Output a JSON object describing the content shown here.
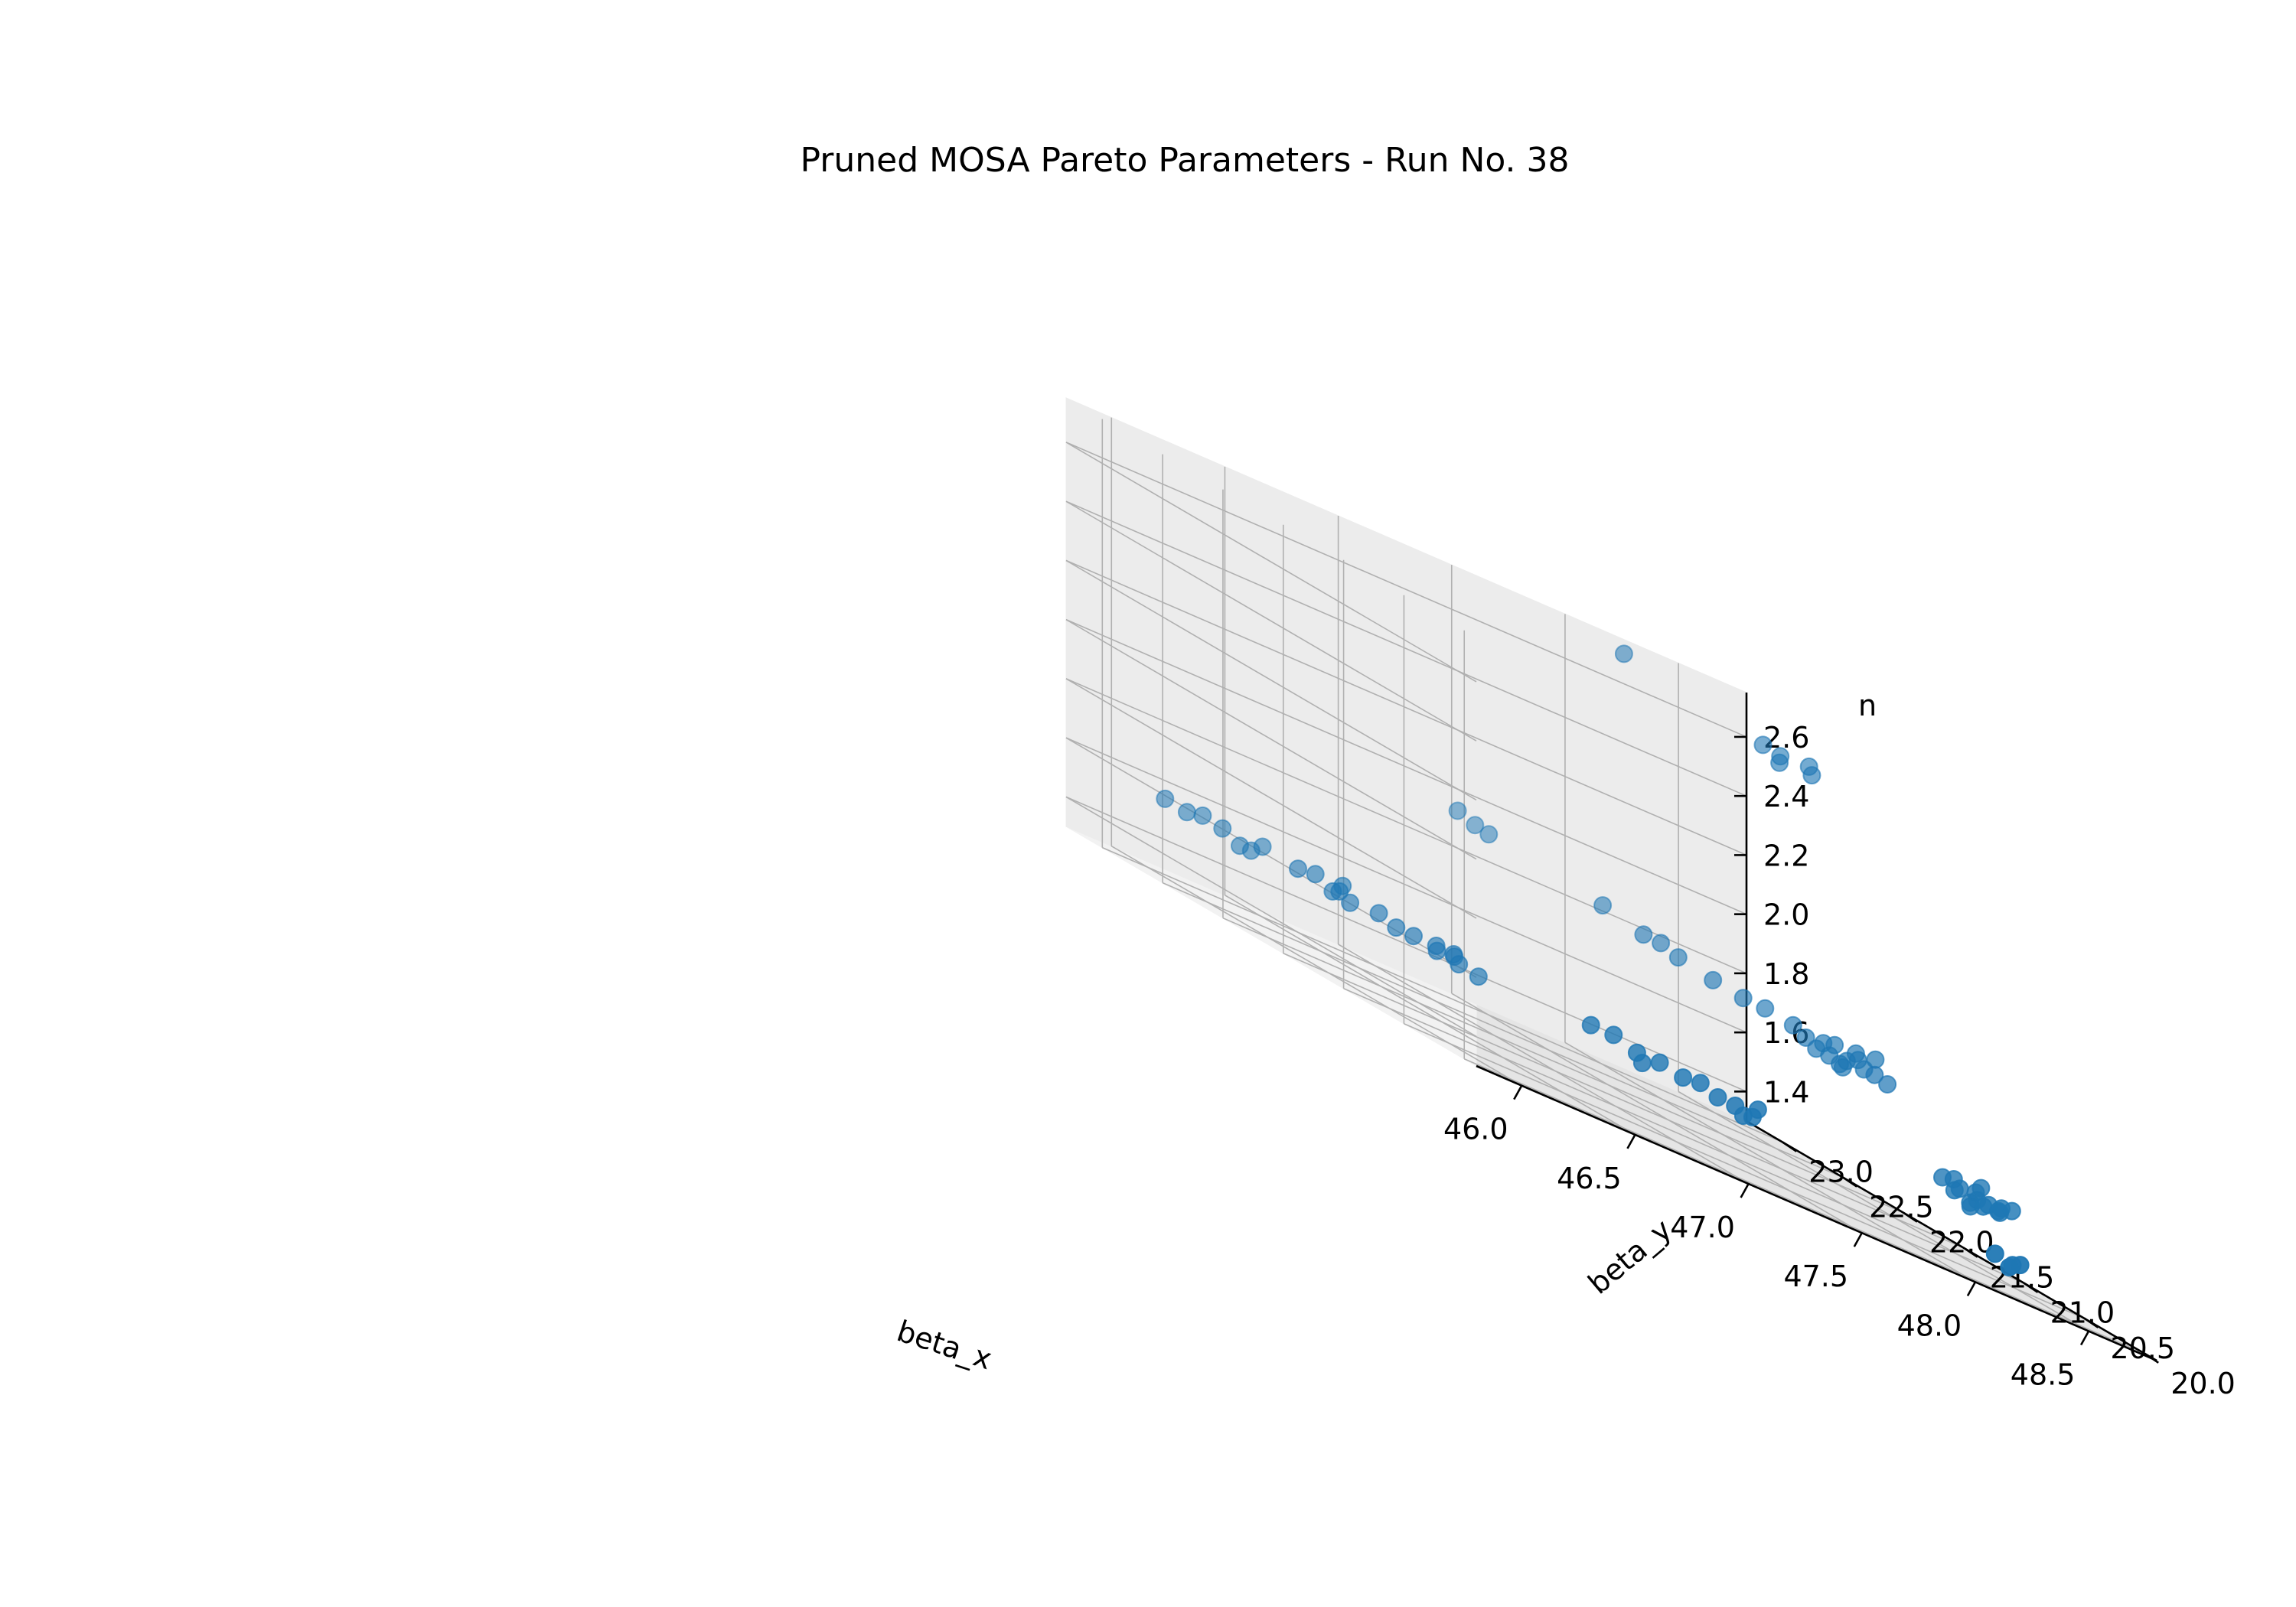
{
  "chart_data": {
    "type": "scatter",
    "projection": "3d",
    "title": "Pruned MOSA Pareto Parameters - Run No. 38",
    "xlabel": "beta_x",
    "ylabel": "beta_y",
    "zlabel": "n",
    "xlim": [
      45.8,
      48.8
    ],
    "ylim": [
      19.9,
      23.3
    ],
    "zlim": [
      1.3,
      2.75
    ],
    "xticks": [
      46.0,
      46.5,
      47.0,
      47.5,
      48.0,
      48.5
    ],
    "xtick_labels": [
      "46.0",
      "46.5",
      "47.0",
      "47.5",
      "48.0",
      "48.5"
    ],
    "yticks": [
      20.0,
      20.5,
      21.0,
      21.5,
      22.0,
      22.5,
      23.0
    ],
    "ytick_labels": [
      "20.0",
      "20.5",
      "21.0",
      "21.5",
      "22.0",
      "22.5",
      "23.0"
    ],
    "zticks": [
      1.4,
      1.6,
      1.8,
      2.0,
      2.2,
      2.4,
      2.6
    ],
    "ztick_labels": [
      "1.4",
      "1.6",
      "1.8",
      "2.0",
      "2.2",
      "2.4",
      "2.6"
    ],
    "grid": true,
    "marker_color": "#1f77b4",
    "series": [
      {
        "name": "pareto",
        "points": [
          [
            46.05,
            22.95,
            1.56
          ],
          [
            46.12,
            22.9,
            1.55
          ],
          [
            46.2,
            22.92,
            1.56
          ],
          [
            46.25,
            22.85,
            1.55
          ],
          [
            46.3,
            22.8,
            1.52
          ],
          [
            46.4,
            22.8,
            1.55
          ],
          [
            46.45,
            22.6,
            1.54
          ],
          [
            46.5,
            22.55,
            1.55
          ],
          [
            46.55,
            22.5,
            1.52
          ],
          [
            46.6,
            22.45,
            1.51
          ],
          [
            46.7,
            22.4,
            1.52
          ],
          [
            46.75,
            22.35,
            1.5
          ],
          [
            46.8,
            22.3,
            1.5
          ],
          [
            46.85,
            22.2,
            1.49
          ],
          [
            46.92,
            22.15,
            1.48
          ],
          [
            46.95,
            22.25,
            1.5
          ],
          [
            46.98,
            22.1,
            1.47
          ],
          [
            46.35,
            22.8,
            1.52
          ],
          [
            46.58,
            22.5,
            1.53
          ],
          [
            46.62,
            22.55,
            1.55
          ],
          [
            46.9,
            22.3,
            1.5
          ],
          [
            46.98,
            22.3,
            1.49
          ],
          [
            47.05,
            21.3,
            1.52
          ],
          [
            47.15,
            21.3,
            1.52
          ],
          [
            47.2,
            21.2,
            1.5
          ],
          [
            47.3,
            21.2,
            1.5
          ],
          [
            47.35,
            21.1,
            1.49
          ],
          [
            47.45,
            21.0,
            1.48
          ],
          [
            47.5,
            20.95,
            1.48
          ],
          [
            47.55,
            20.9,
            1.47
          ],
          [
            47.6,
            20.95,
            1.5
          ],
          [
            47.25,
            21.25,
            1.47
          ],
          [
            47.4,
            21.05,
            1.5
          ],
          [
            47.52,
            20.92,
            1.46
          ],
          [
            47.5,
            23.25,
            1.93
          ],
          [
            47.55,
            23.2,
            1.91
          ],
          [
            47.6,
            23.18,
            1.9
          ],
          [
            47.9,
            22.8,
            1.85
          ],
          [
            48.0,
            22.65,
            1.82
          ],
          [
            48.05,
            22.6,
            1.82
          ],
          [
            48.1,
            22.55,
            1.8
          ],
          [
            48.2,
            22.45,
            1.78
          ],
          [
            48.28,
            22.35,
            1.77
          ],
          [
            48.35,
            22.3,
            1.77
          ],
          [
            48.42,
            22.2,
            1.76
          ],
          [
            48.5,
            22.1,
            1.75
          ],
          [
            48.55,
            22.0,
            1.73
          ],
          [
            48.6,
            21.95,
            1.73
          ],
          [
            48.65,
            21.85,
            1.72
          ],
          [
            48.5,
            22.05,
            1.72
          ],
          [
            48.55,
            22.1,
            1.76
          ],
          [
            48.6,
            22.0,
            1.75
          ],
          [
            48.45,
            22.15,
            1.74
          ],
          [
            48.58,
            21.98,
            1.77
          ],
          [
            48.65,
            21.95,
            1.78
          ],
          [
            48.52,
            22.0,
            1.71
          ],
          [
            48.62,
            21.9,
            1.73
          ],
          [
            48.56,
            22.05,
            1.7
          ],
          [
            48.48,
            22.12,
            1.72
          ],
          [
            48.6,
            21.3,
            1.52
          ],
          [
            48.65,
            21.25,
            1.51
          ],
          [
            48.7,
            21.2,
            1.5
          ],
          [
            48.75,
            21.2,
            1.5
          ],
          [
            48.7,
            21.15,
            1.49
          ],
          [
            48.65,
            21.3,
            1.53
          ],
          [
            48.72,
            21.25,
            1.52
          ],
          [
            48.78,
            21.15,
            1.51
          ],
          [
            48.6,
            21.2,
            1.5
          ],
          [
            48.68,
            21.22,
            1.48
          ],
          [
            48.74,
            21.1,
            1.5
          ],
          [
            48.8,
            21.1,
            1.52
          ],
          [
            48.77,
            21.3,
            1.54
          ],
          [
            48.66,
            21.18,
            1.47
          ],
          [
            48.8,
            21.2,
            1.49
          ],
          [
            48.3,
            20.3,
            1.4
          ],
          [
            48.35,
            20.25,
            1.39
          ],
          [
            48.4,
            20.28,
            1.4
          ],
          [
            48.32,
            20.22,
            1.38
          ],
          [
            48.1,
            23.0,
            2.72
          ],
          [
            48.5,
            22.6,
            2.64
          ],
          [
            48.55,
            22.55,
            2.63
          ],
          [
            48.65,
            22.5,
            2.64
          ],
          [
            48.52,
            22.5,
            2.61
          ],
          [
            48.62,
            22.42,
            2.62
          ]
        ]
      }
    ]
  }
}
